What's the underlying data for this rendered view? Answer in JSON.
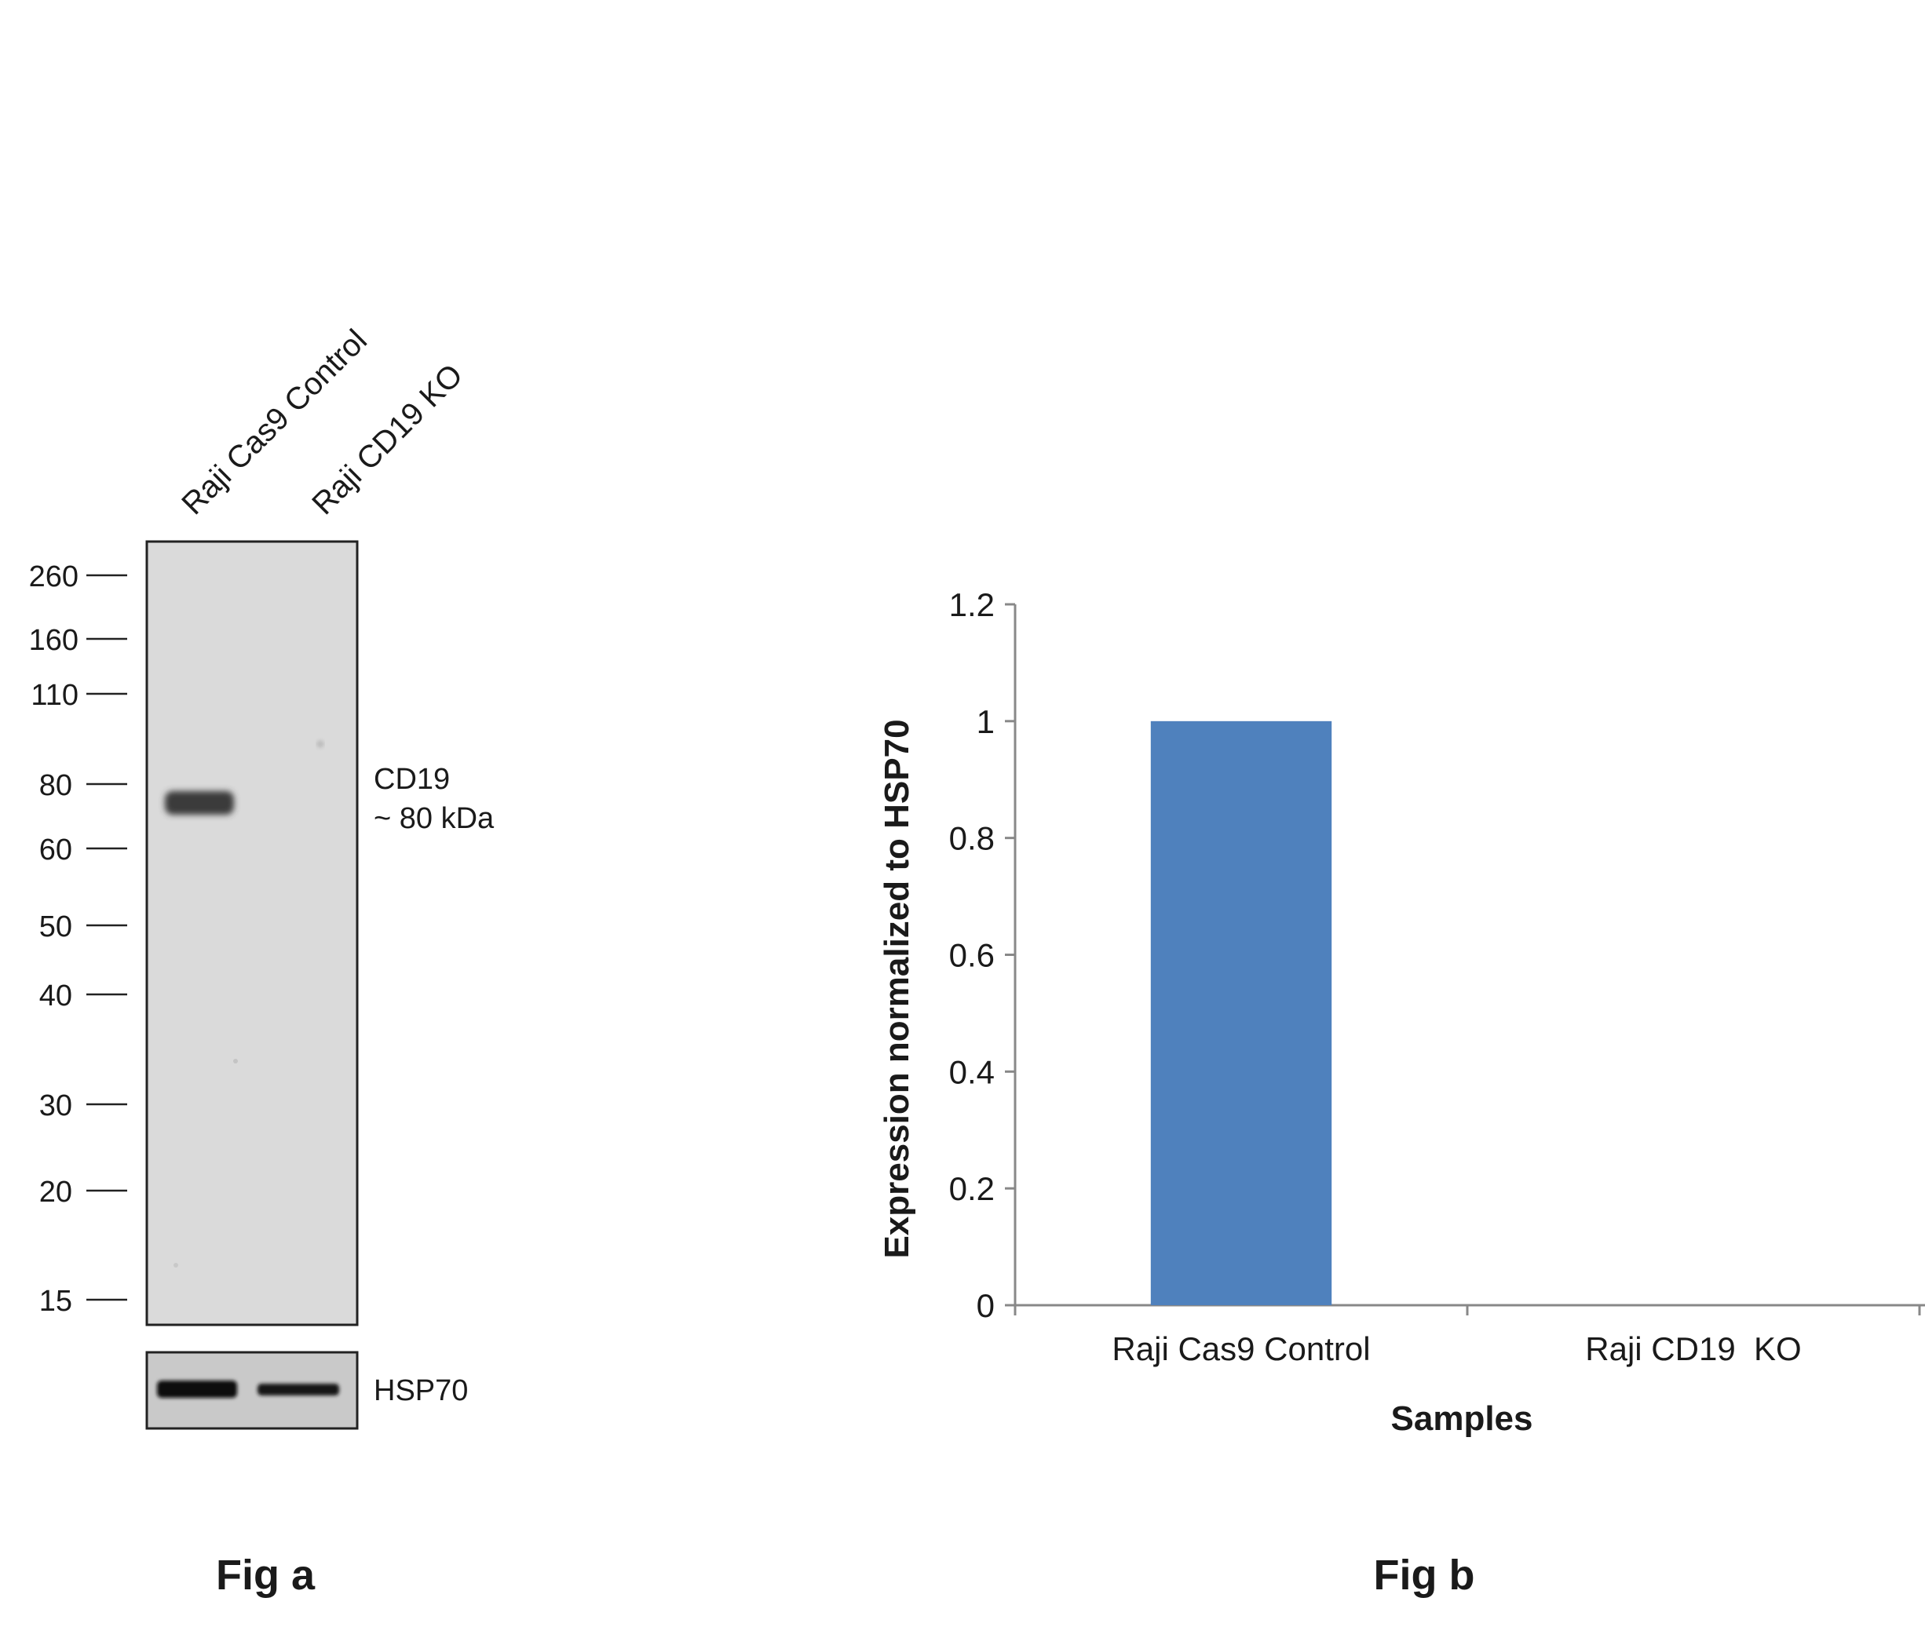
{
  "fig_a": {
    "label": "Fig a",
    "lanes": [
      "Raji Cas9 Control",
      "Raji CD19  KO"
    ],
    "markers": [
      "260",
      "160",
      "110",
      "80",
      "60",
      "50",
      "40",
      "30",
      "20",
      "15"
    ],
    "band_label": "CD19",
    "band_size": "~ 80 kDa",
    "loading_control": "HSP70"
  },
  "fig_b": {
    "label": "Fig b"
  },
  "chart_data": {
    "type": "bar",
    "categories": [
      "Raji Cas9 Control",
      "Raji CD19  KO"
    ],
    "values": [
      1.0,
      0.0
    ],
    "title": "",
    "xlabel": "Samples",
    "ylabel": "Expression  normalized to HSP70",
    "ylim": [
      0,
      1.2
    ],
    "yticks": [
      "0",
      "0.2",
      "0.4",
      "0.6",
      "0.8",
      "1",
      "1.2"
    ],
    "bar_color": "#4f81bd",
    "grid": false,
    "legend": "none"
  }
}
